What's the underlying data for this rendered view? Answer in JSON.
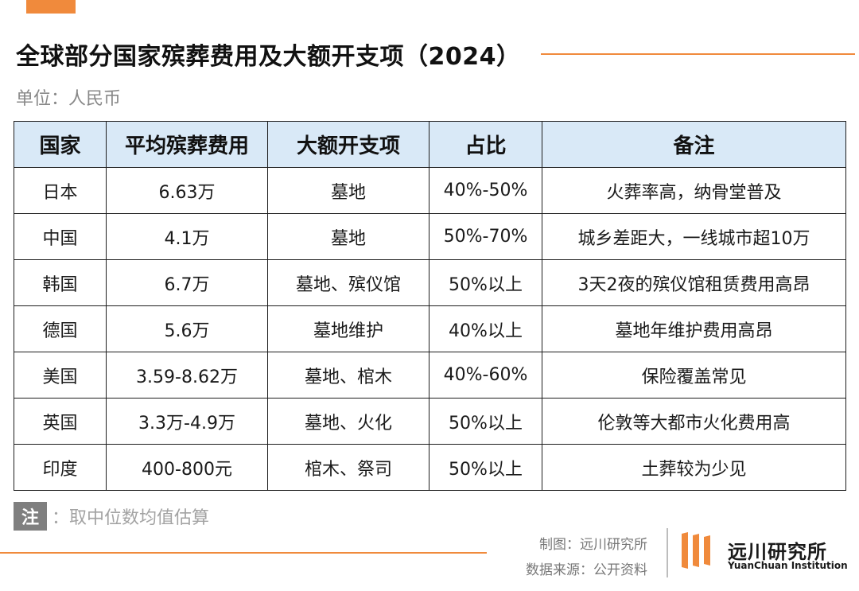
{
  "title": "全球部分国家殡葬费用及大额开支项（2024）",
  "unit": "单位：人民币",
  "table": {
    "headers": [
      "国家",
      "平均殡葬费用",
      "大额开支项",
      "占比",
      "备注"
    ],
    "rows": [
      [
        "日本",
        "6.63万",
        "墓地",
        "40%-50%",
        "火葬率高，纳骨堂普及"
      ],
      [
        "中国",
        "4.1万",
        "墓地",
        "50%-70%",
        "城乡差距大，一线城市超10万"
      ],
      [
        "韩国",
        "6.7万",
        "墓地、殡仪馆",
        "50%以上",
        "3天2夜的殡仪馆租赁费用高昂"
      ],
      [
        "德国",
        "5.6万",
        "墓地维护",
        "40%以上",
        "墓地年维护费用高昂"
      ],
      [
        "美国",
        "3.59-8.62万",
        "墓地、棺木",
        "40%-60%",
        "保险覆盖常见"
      ],
      [
        "英国",
        "3.3万-4.9万",
        "墓地、火化",
        "50%以上",
        "伦敦等大都市火化费用高"
      ],
      [
        "印度",
        "400-800元",
        "棺木、祭司",
        "50%以上",
        "土葬较为少见"
      ]
    ]
  },
  "note": {
    "tag": "注",
    "text": "：取中位数均值估算"
  },
  "credits": {
    "chart_by": "制图：远川研究所",
    "source": "数据来源：公开资料"
  },
  "logo": {
    "cn": "远川研究所",
    "en": "YuanChuan Institution"
  },
  "colors": {
    "accent": "#f08a3c",
    "header_bg": "#d9e9f7"
  }
}
